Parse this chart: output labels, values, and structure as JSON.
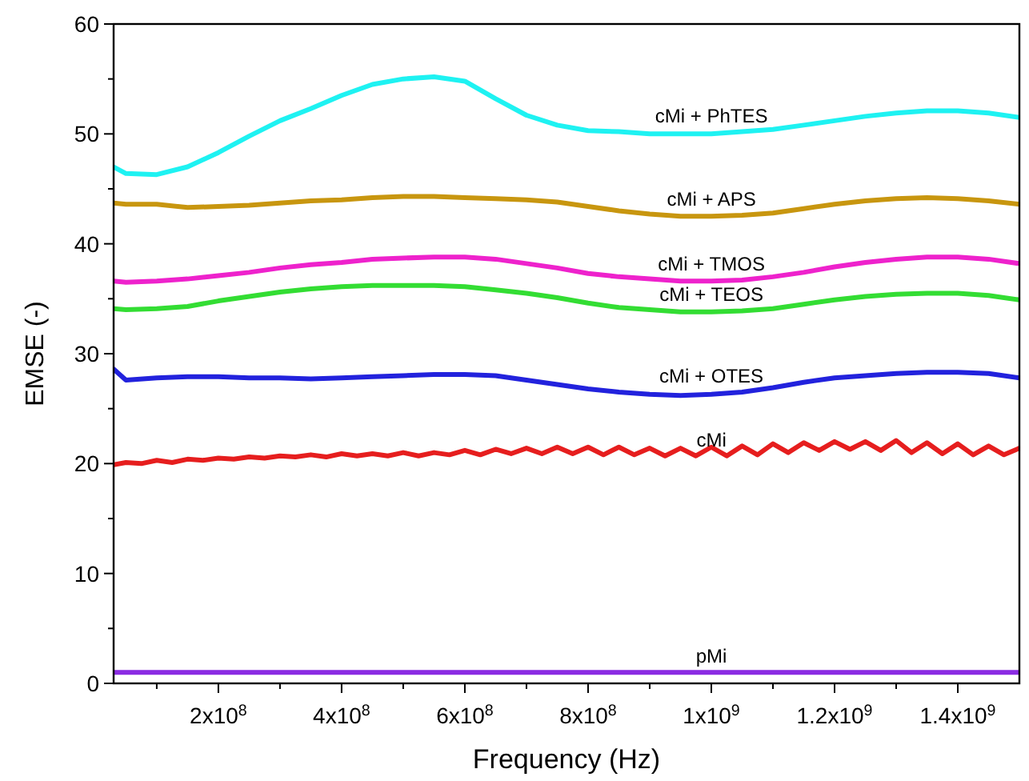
{
  "chart_data": {
    "type": "line",
    "xlabel": "Frequency (Hz)",
    "ylabel": "EMSE (-)",
    "x": [
      30000000,
      50000000,
      100000000,
      150000000,
      200000000,
      250000000,
      300000000,
      350000000,
      400000000,
      450000000,
      500000000,
      550000000,
      600000000,
      650000000,
      700000000,
      750000000,
      800000000,
      850000000,
      900000000,
      950000000,
      1000000000,
      1050000000,
      1100000000,
      1150000000,
      1200000000,
      1250000000,
      1300000000,
      1350000000,
      1400000000,
      1450000000,
      1500000000
    ],
    "xlim": [
      30000000,
      1500000000
    ],
    "xticks": [
      {
        "value": 100000000,
        "label": null
      },
      {
        "value": 200000000,
        "label": "2x10$^{8}$"
      },
      {
        "value": 300000000,
        "label": null
      },
      {
        "value": 400000000,
        "label": "4x10$^{8}$"
      },
      {
        "value": 500000000,
        "label": null
      },
      {
        "value": 600000000,
        "label": "6x10$^{8}$"
      },
      {
        "value": 700000000,
        "label": null
      },
      {
        "value": 800000000,
        "label": "8x10$^{8}$"
      },
      {
        "value": 900000000,
        "label": null
      },
      {
        "value": 1000000000,
        "label": "1x10$^{9}$"
      },
      {
        "value": 1100000000,
        "label": null
      },
      {
        "value": 1200000000,
        "label": "1.2x10$^{9}$"
      },
      {
        "value": 1300000000,
        "label": null
      },
      {
        "value": 1400000000,
        "label": "1.4x10$^{9}$"
      }
    ],
    "ylim": [
      0,
      60
    ],
    "yticks": [
      0,
      {
        "value": 5,
        "label": null
      },
      10,
      {
        "value": 15,
        "label": null
      },
      20,
      {
        "value": 25,
        "label": null
      },
      30,
      {
        "value": 35,
        "label": null
      },
      40,
      {
        "value": 45,
        "label": null
      },
      50,
      {
        "value": 55,
        "label": null
      },
      60
    ],
    "grid": false,
    "marker": "none",
    "line_style": "solid",
    "series": [
      {
        "name": "cMi + PhTES",
        "color": "#1ef2f2",
        "values": [
          47,
          46.4,
          46.3,
          47,
          48.3,
          49.8,
          51.2,
          52.3,
          53.5,
          54.5,
          55,
          55.2,
          54.8,
          53.2,
          51.7,
          50.8,
          50.3,
          50.2,
          50,
          50,
          50,
          50.2,
          50.4,
          50.8,
          51.2,
          51.6,
          51.9,
          52.1,
          52.1,
          51.9,
          51.5
        ]
      },
      {
        "name": "cMi + APS",
        "color": "#c8960f",
        "values": [
          43.7,
          43.6,
          43.6,
          43.3,
          43.4,
          43.5,
          43.7,
          43.9,
          44,
          44.2,
          44.3,
          44.3,
          44.2,
          44.1,
          44,
          43.8,
          43.4,
          43,
          42.7,
          42.5,
          42.5,
          42.6,
          42.8,
          43.2,
          43.6,
          43.9,
          44.1,
          44.2,
          44.1,
          43.9,
          43.6
        ]
      },
      {
        "name": "cMi + TMOS",
        "color": "#ee22cc",
        "values": [
          36.6,
          36.5,
          36.6,
          36.8,
          37.1,
          37.4,
          37.8,
          38.1,
          38.3,
          38.6,
          38.7,
          38.8,
          38.8,
          38.6,
          38.2,
          37.8,
          37.3,
          37,
          36.8,
          36.6,
          36.6,
          36.7,
          37,
          37.4,
          37.9,
          38.3,
          38.6,
          38.8,
          38.8,
          38.6,
          38.2
        ]
      },
      {
        "name": "cMi + TEOS",
        "color": "#33dd33",
        "values": [
          34.1,
          34,
          34.1,
          34.3,
          34.8,
          35.2,
          35.6,
          35.9,
          36.1,
          36.2,
          36.2,
          36.2,
          36.1,
          35.8,
          35.5,
          35.1,
          34.6,
          34.2,
          34,
          33.8,
          33.8,
          33.9,
          34.1,
          34.5,
          34.9,
          35.2,
          35.4,
          35.5,
          35.5,
          35.3,
          34.9
        ]
      },
      {
        "name": "cMi + OTES",
        "color": "#2222dd",
        "values": [
          28.6,
          27.6,
          27.8,
          27.9,
          27.9,
          27.8,
          27.8,
          27.7,
          27.8,
          27.9,
          28,
          28.1,
          28.1,
          28,
          27.6,
          27.2,
          26.8,
          26.5,
          26.3,
          26.2,
          26.3,
          26.5,
          26.9,
          27.4,
          27.8,
          28,
          28.2,
          28.3,
          28.3,
          28.2,
          27.8
        ]
      },
      {
        "name": "cMi",
        "color": "#e61e1e",
        "x": [
          30000000,
          50000000,
          75000000,
          100000000,
          125000000,
          150000000,
          175000000,
          200000000,
          225000000,
          250000000,
          275000000,
          300000000,
          325000000,
          350000000,
          375000000,
          400000000,
          425000000,
          450000000,
          475000000,
          500000000,
          525000000,
          550000000,
          575000000,
          600000000,
          625000000,
          650000000,
          675000000,
          700000000,
          725000000,
          750000000,
          775000000,
          800000000,
          825000000,
          850000000,
          875000000,
          900000000,
          925000000,
          950000000,
          975000000,
          1000000000,
          1025000000,
          1050000000,
          1075000000,
          1100000000,
          1125000000,
          1150000000,
          1175000000,
          1200000000,
          1225000000,
          1250000000,
          1275000000,
          1300000000,
          1325000000,
          1350000000,
          1375000000,
          1400000000,
          1425000000,
          1450000000,
          1475000000,
          1500000000
        ],
        "values": [
          19.9,
          20.1,
          20,
          20.3,
          20.1,
          20.4,
          20.3,
          20.5,
          20.4,
          20.6,
          20.5,
          20.7,
          20.6,
          20.8,
          20.6,
          20.9,
          20.7,
          20.9,
          20.7,
          21,
          20.7,
          21,
          20.8,
          21.2,
          20.8,
          21.3,
          20.9,
          21.4,
          20.9,
          21.5,
          20.9,
          21.5,
          20.8,
          21.5,
          20.8,
          21.4,
          20.7,
          21.4,
          20.7,
          21.5,
          20.7,
          21.6,
          20.8,
          21.8,
          21,
          21.9,
          21.2,
          22,
          21.3,
          22,
          21.2,
          22.1,
          21,
          21.9,
          20.9,
          21.8,
          20.8,
          21.6,
          20.8,
          21.4
        ]
      },
      {
        "name": "pMi",
        "color": "#8a2be2",
        "values": [
          1,
          1,
          1,
          1,
          1,
          1,
          1,
          1,
          1,
          1,
          1,
          1,
          1,
          1,
          1,
          1,
          1,
          1,
          1,
          1,
          1,
          1,
          1,
          1,
          1,
          1,
          1,
          1,
          1,
          1,
          1
        ]
      }
    ]
  }
}
